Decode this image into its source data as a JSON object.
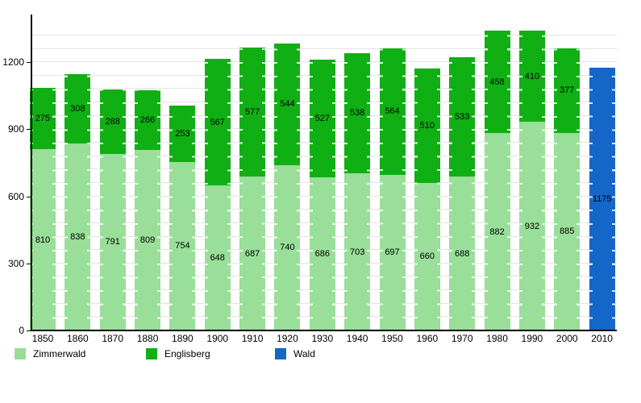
{
  "chart_data": {
    "type": "bar",
    "stacked": true,
    "title": "",
    "xlabel": "",
    "ylabel": "",
    "categories": [
      "1850",
      "1860",
      "1870",
      "1880",
      "1890",
      "1900",
      "1910",
      "1920",
      "1930",
      "1940",
      "1950",
      "1960",
      "1970",
      "1980",
      "1990",
      "2000",
      "2010"
    ],
    "series": [
      {
        "name": "Zimmerwald",
        "color": "#99de99",
        "values": [
          810,
          838,
          791,
          809,
          754,
          648,
          687,
          740,
          686,
          703,
          697,
          660,
          688,
          882,
          932,
          885,
          null
        ]
      },
      {
        "name": "Englisberg",
        "color": "#10af14",
        "values": [
          275,
          308,
          288,
          266,
          253,
          567,
          577,
          544,
          527,
          538,
          564,
          510,
          533,
          458,
          410,
          377,
          null
        ]
      },
      {
        "name": "Wald",
        "color": "#1467c8",
        "values": [
          null,
          null,
          null,
          null,
          null,
          null,
          null,
          null,
          null,
          null,
          null,
          null,
          null,
          null,
          null,
          null,
          1175
        ]
      }
    ],
    "ylim": [
      0,
      1406
    ],
    "yticks": [
      0,
      300,
      600,
      900,
      1200
    ],
    "minor_grid_step": 60,
    "grid": true,
    "legend_position": "bottom",
    "colors": {
      "gridline": "#e4e4e4",
      "axis": "#000000",
      "background": "#ffffff",
      "label_text": "#000000"
    }
  }
}
